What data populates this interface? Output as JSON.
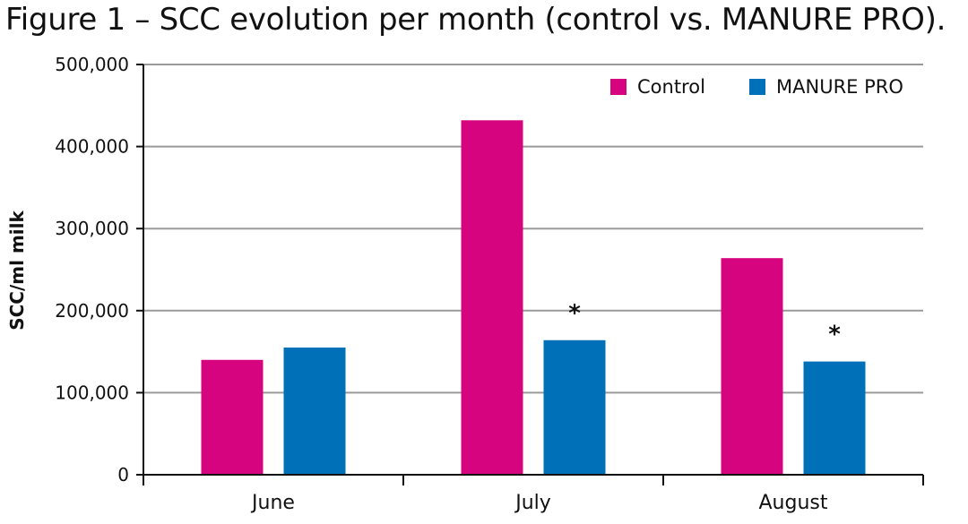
{
  "title": "Figure 1 – SCC evolution per month (control vs. MANURE PRO).",
  "chart_data": {
    "type": "bar",
    "ylabel": "SCC/ml milk",
    "xlabel": "",
    "categories": [
      "June",
      "July",
      "August"
    ],
    "ylim": [
      0,
      500000
    ],
    "yticks": [
      0,
      100000,
      200000,
      300000,
      400000,
      500000
    ],
    "ytick_labels": [
      "0",
      "100,000",
      "200,000",
      "300,000",
      "400,000",
      "500,000"
    ],
    "grid": true,
    "legend_position": "top-right",
    "series": [
      {
        "name": "Control",
        "color": "#d6047e",
        "values": [
          140000,
          432000,
          264000
        ]
      },
      {
        "name": "MANURE PRO",
        "color": "#0070b8",
        "values": [
          155000,
          164000,
          138000
        ]
      }
    ],
    "annotations": [
      {
        "text": "*",
        "series": "MANURE PRO",
        "category": "July"
      },
      {
        "text": "*",
        "series": "MANURE PRO",
        "category": "August"
      }
    ]
  }
}
